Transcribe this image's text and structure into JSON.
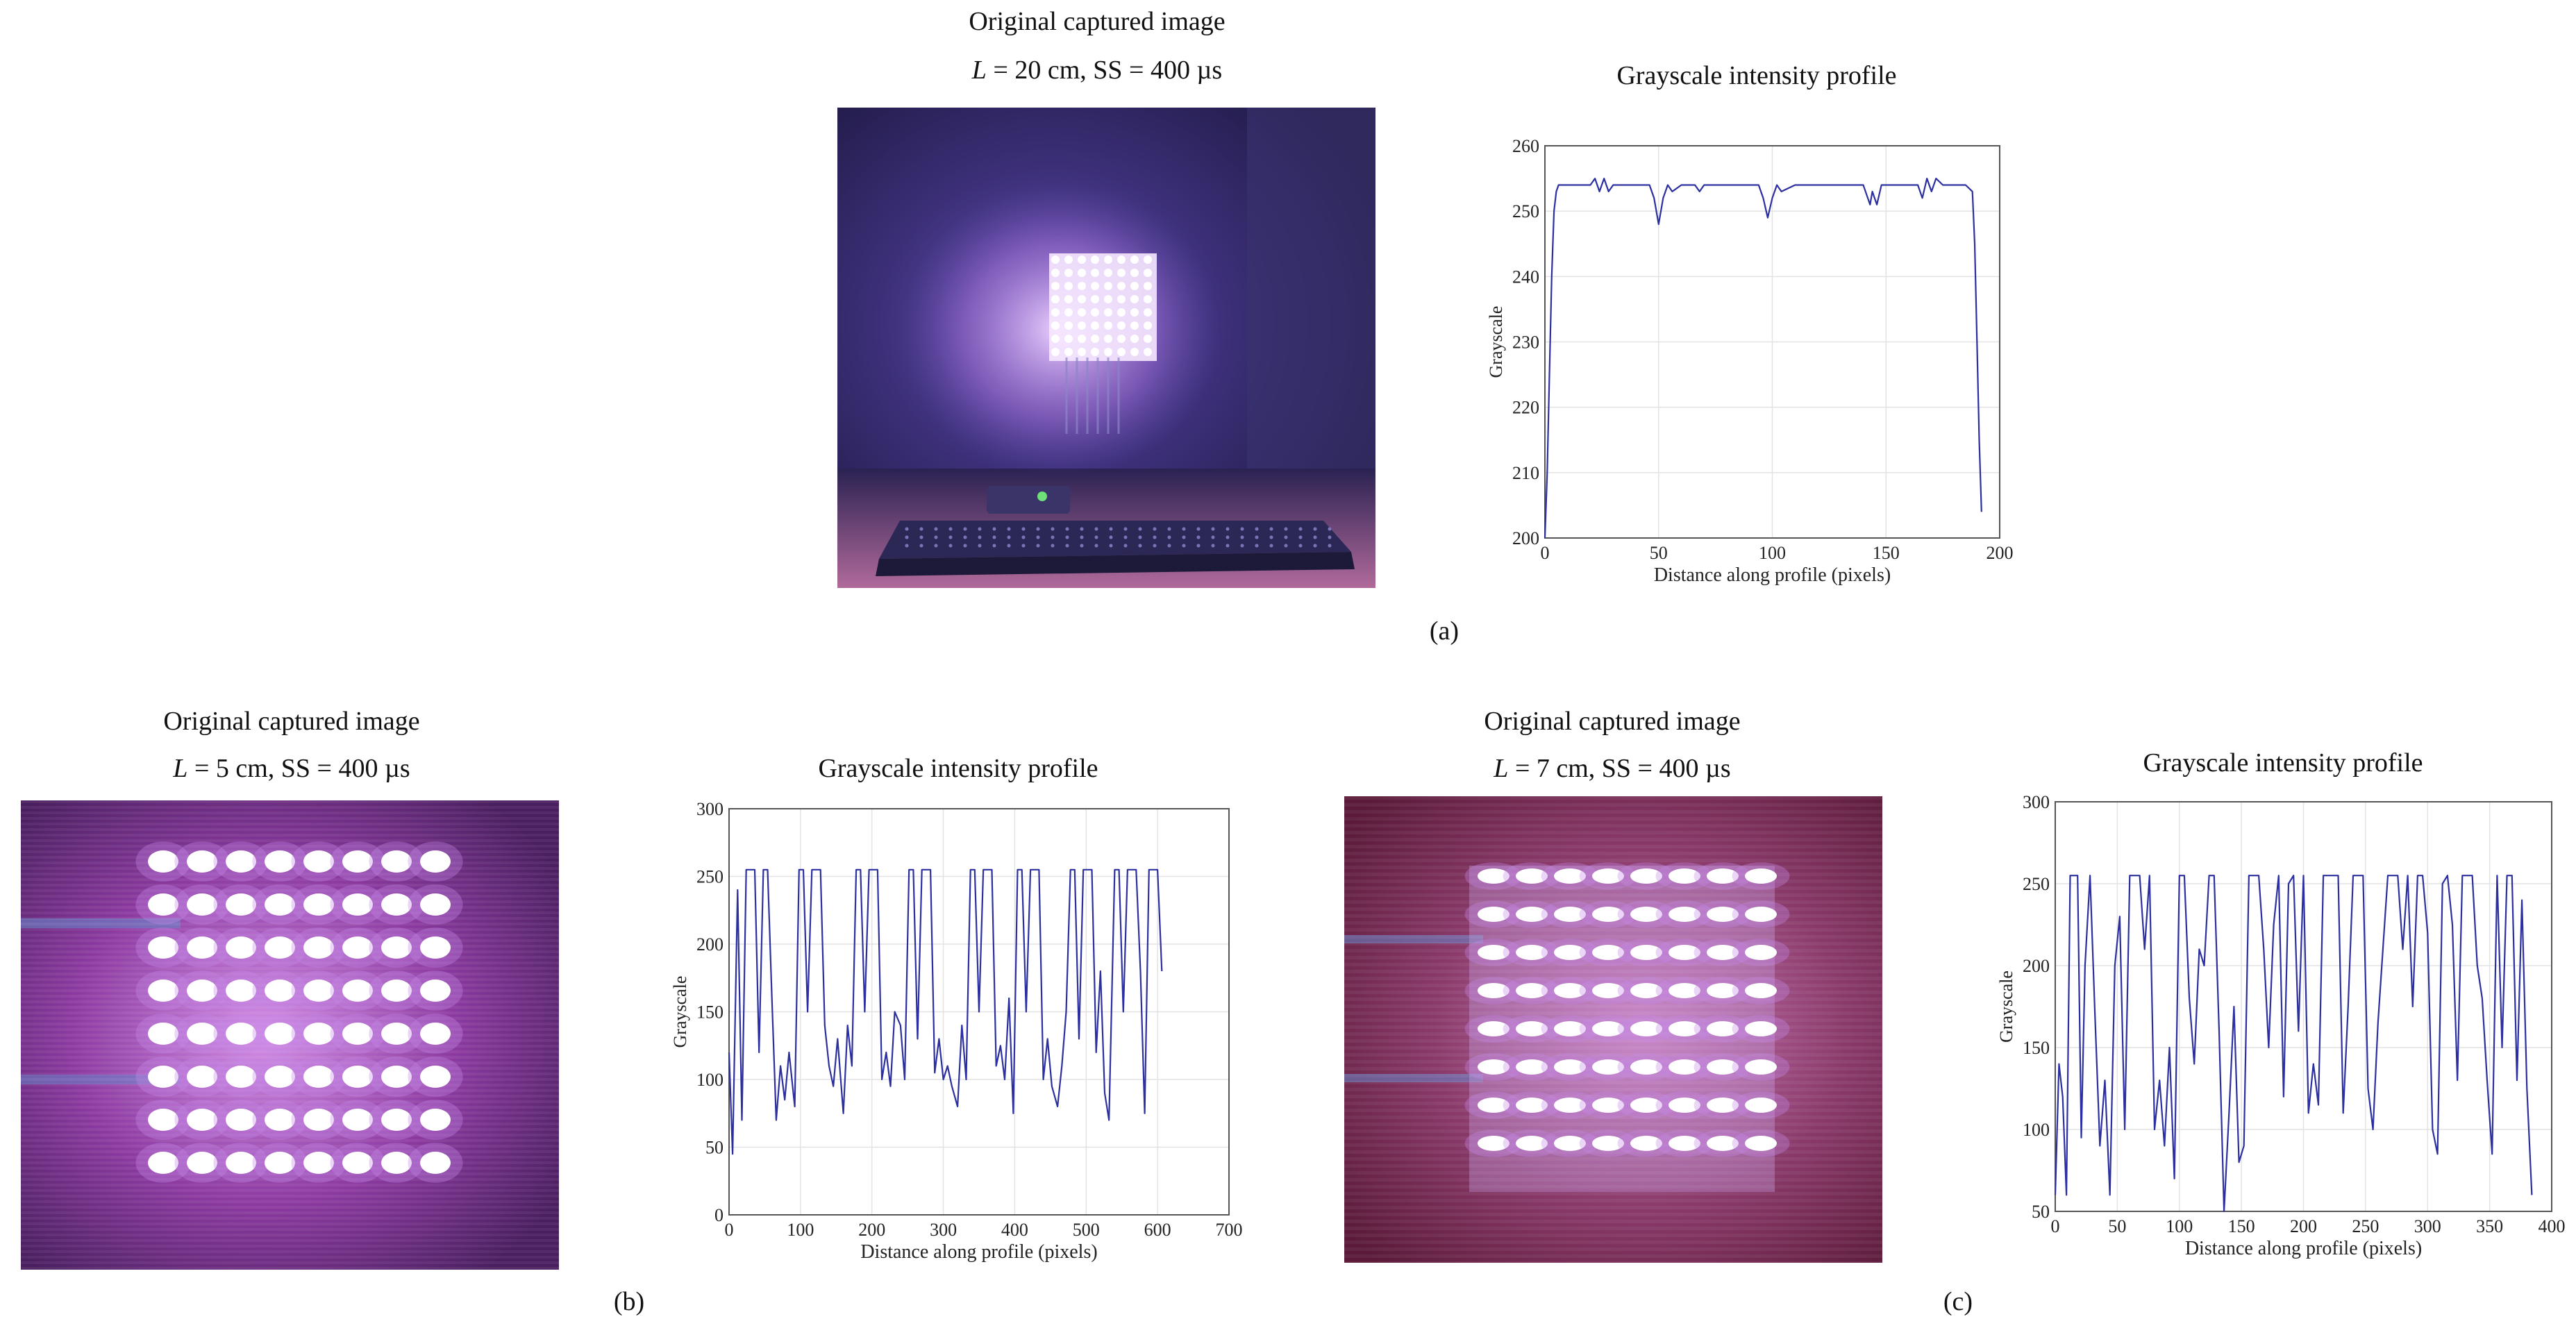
{
  "panel_a": {
    "label": "(a)",
    "image_title": "Original captured image",
    "image_params_italic": "L",
    "image_params_rest": " = 20 cm, SS = 400 µs",
    "chart_title": "Grayscale intensity profile"
  },
  "panel_b": {
    "label": "(b)",
    "image_title": "Original captured image",
    "image_params_italic": "L",
    "image_params_rest": " = 5 cm, SS = 400 µs",
    "chart_title": "Grayscale intensity profile"
  },
  "panel_c": {
    "label": "(c)",
    "image_title": "Original captured image",
    "image_params_italic": "L",
    "image_params_rest": " = 7 cm, SS = 400 µs",
    "chart_title": "Grayscale intensity profile"
  },
  "colors": {
    "line": "#2b2fa0",
    "grid": "#e3e3e3",
    "axis": "#555555",
    "led": "#ffffff",
    "glow": "#c58ae8"
  },
  "chart_data": [
    {
      "type": "line",
      "title": "Grayscale intensity profile",
      "xlabel": "Distance along profile (pixels)",
      "ylabel": "Grayscale",
      "xlim": [
        0,
        200
      ],
      "ylim": [
        200,
        260
      ],
      "xticks": [
        0,
        50,
        100,
        150,
        200
      ],
      "yticks": [
        200,
        210,
        220,
        230,
        240,
        250,
        260
      ],
      "grid": true,
      "series": [
        {
          "x": [
            0,
            1,
            2,
            3,
            4,
            5,
            6,
            8,
            10,
            15,
            20,
            22,
            24,
            26,
            28,
            30,
            35,
            40,
            46,
            48,
            50,
            52,
            54,
            56,
            60,
            66,
            68,
            70,
            72,
            74,
            80,
            90,
            94,
            96,
            98,
            100,
            102,
            104,
            110,
            120,
            130,
            140,
            142,
            143,
            144,
            146,
            148,
            150,
            160,
            164,
            166,
            168,
            170,
            172,
            175,
            180,
            185,
            188,
            189,
            190,
            191,
            192
          ],
          "y": [
            200,
            210,
            225,
            240,
            250,
            253,
            254,
            254,
            254,
            254,
            254,
            255,
            253,
            255,
            253,
            254,
            254,
            254,
            254,
            252,
            248,
            252,
            254,
            253,
            254,
            254,
            253,
            254,
            254,
            254,
            254,
            254,
            254,
            252,
            249,
            252,
            254,
            253,
            254,
            254,
            254,
            254,
            252,
            251,
            253,
            251,
            254,
            254,
            254,
            254,
            252,
            255,
            253,
            255,
            254,
            254,
            254,
            253,
            245,
            230,
            215,
            204
          ]
        }
      ]
    },
    {
      "type": "line",
      "title": "Grayscale intensity profile",
      "xlabel": "Distance along profile (pixels)",
      "ylabel": "Grayscale",
      "xlim": [
        0,
        700
      ],
      "ylim": [
        0,
        300
      ],
      "xticks": [
        0,
        100,
        200,
        300,
        400,
        500,
        600,
        700
      ],
      "yticks": [
        0,
        50,
        100,
        150,
        200,
        250,
        300
      ],
      "grid": true,
      "series": [
        {
          "x": [
            0,
            5,
            12,
            18,
            24,
            30,
            36,
            42,
            48,
            54,
            60,
            66,
            72,
            78,
            84,
            92,
            98,
            104,
            110,
            116,
            122,
            128,
            134,
            140,
            146,
            152,
            160,
            166,
            172,
            178,
            184,
            190,
            196,
            202,
            208,
            214,
            220,
            226,
            232,
            240,
            246,
            252,
            258,
            264,
            270,
            276,
            282,
            288,
            294,
            300,
            306,
            312,
            320,
            326,
            332,
            338,
            344,
            350,
            356,
            362,
            368,
            374,
            380,
            386,
            392,
            398,
            404,
            410,
            416,
            422,
            428,
            434,
            440,
            446,
            452,
            460,
            466,
            472,
            478,
            484,
            490,
            496,
            502,
            508,
            514,
            520,
            526,
            532,
            540,
            546,
            552,
            558,
            564,
            570,
            576,
            582,
            588,
            594,
            600,
            606
          ],
          "y": [
            120,
            45,
            240,
            70,
            255,
            255,
            255,
            120,
            255,
            255,
            160,
            70,
            110,
            85,
            120,
            80,
            255,
            255,
            150,
            255,
            255,
            255,
            140,
            110,
            95,
            130,
            75,
            140,
            110,
            255,
            255,
            150,
            255,
            255,
            255,
            100,
            120,
            95,
            150,
            140,
            100,
            255,
            255,
            130,
            255,
            255,
            255,
            105,
            130,
            100,
            110,
            95,
            80,
            140,
            100,
            255,
            255,
            150,
            255,
            255,
            255,
            110,
            125,
            100,
            160,
            75,
            255,
            255,
            150,
            255,
            255,
            255,
            100,
            130,
            95,
            80,
            110,
            150,
            255,
            255,
            130,
            255,
            255,
            255,
            120,
            180,
            90,
            70,
            255,
            255,
            150,
            255,
            255,
            255,
            180,
            75,
            255,
            255,
            255,
            180
          ]
        }
      ]
    },
    {
      "type": "line",
      "title": "Grayscale intensity profile",
      "xlabel": "Distance along profile (pixels)",
      "ylabel": "Grayscale",
      "xlim": [
        0,
        400
      ],
      "ylim": [
        50,
        300
      ],
      "xticks": [
        0,
        50,
        100,
        150,
        200,
        250,
        300,
        350,
        400
      ],
      "yticks": [
        50,
        100,
        150,
        200,
        250,
        300
      ],
      "grid": true,
      "series": [
        {
          "x": [
            0,
            3,
            6,
            9,
            12,
            15,
            18,
            21,
            24,
            28,
            32,
            36,
            40,
            44,
            48,
            52,
            56,
            60,
            64,
            68,
            72,
            76,
            80,
            84,
            88,
            92,
            96,
            100,
            104,
            108,
            112,
            116,
            120,
            124,
            128,
            132,
            136,
            140,
            144,
            148,
            152,
            156,
            160,
            164,
            168,
            172,
            176,
            180,
            184,
            188,
            192,
            196,
            200,
            204,
            208,
            212,
            216,
            220,
            224,
            228,
            232,
            236,
            240,
            244,
            248,
            252,
            256,
            260,
            264,
            268,
            272,
            276,
            280,
            284,
            288,
            292,
            296,
            300,
            304,
            308,
            312,
            316,
            320,
            324,
            328,
            332,
            336,
            340,
            344,
            348,
            352,
            356,
            360,
            364,
            368,
            372,
            376,
            380,
            384
          ],
          "y": [
            60,
            140,
            120,
            60,
            255,
            255,
            255,
            95,
            200,
            255,
            170,
            90,
            130,
            60,
            200,
            230,
            100,
            255,
            255,
            255,
            210,
            255,
            100,
            130,
            90,
            150,
            70,
            255,
            255,
            180,
            140,
            210,
            200,
            255,
            255,
            160,
            50,
            110,
            175,
            80,
            90,
            255,
            255,
            255,
            210,
            150,
            225,
            255,
            120,
            250,
            255,
            160,
            255,
            110,
            140,
            115,
            255,
            255,
            255,
            255,
            110,
            175,
            255,
            255,
            255,
            125,
            100,
            165,
            210,
            255,
            255,
            255,
            210,
            255,
            175,
            255,
            255,
            220,
            100,
            85,
            250,
            255,
            225,
            130,
            255,
            255,
            255,
            200,
            180,
            130,
            85,
            255,
            150,
            255,
            255,
            130,
            240,
            125,
            60
          ]
        }
      ]
    }
  ]
}
